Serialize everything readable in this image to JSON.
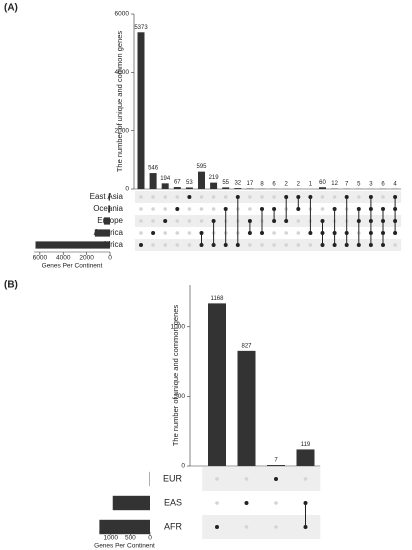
{
  "chart_data": [
    {
      "type": "upset",
      "title": "(A)",
      "ylabel": "The number of unique and common genes",
      "xlabel": "Genes Per Continent",
      "sets": [
        "East Asia",
        "Oceania",
        "Europe",
        "America",
        "Africa"
      ],
      "set_sizes": [
        110,
        150,
        520,
        1300,
        6370
      ],
      "set_xlim": [
        0,
        6500
      ],
      "set_xticks": [
        6000,
        4000,
        2000,
        0
      ],
      "values": [
        5373,
        546,
        194,
        67,
        53,
        595,
        219,
        55,
        32,
        17,
        8,
        6,
        2,
        2,
        1,
        60,
        12,
        7,
        5,
        3,
        6,
        4
      ],
      "intersections": [
        [
          4
        ],
        [
          3
        ],
        [
          2
        ],
        [
          1
        ],
        [
          0
        ],
        [
          3,
          4
        ],
        [
          2,
          4
        ],
        [
          1,
          4
        ],
        [
          0,
          4
        ],
        [
          2,
          3
        ],
        [
          1,
          3
        ],
        [
          1,
          2
        ],
        [
          0,
          2
        ],
        [
          0,
          1
        ],
        [
          0,
          3
        ],
        [
          2,
          3,
          4
        ],
        [
          1,
          3,
          4
        ],
        [
          0,
          3,
          4
        ],
        [
          1,
          2,
          4
        ],
        [
          0,
          1,
          2,
          3,
          4
        ],
        [
          1,
          2,
          3,
          4
        ],
        [
          0,
          1,
          2,
          3
        ]
      ],
      "ylim": [
        0,
        6000
      ],
      "yticks": [
        0,
        2000,
        4000,
        6000
      ],
      "color": "#333333"
    },
    {
      "type": "upset",
      "title": "(B)",
      "ylabel": "The number of unique and common genes",
      "xlabel": "Genes Per Continent",
      "sets": [
        "EUR",
        "EAS",
        "AFR"
      ],
      "set_sizes": [
        10,
        950,
        1290
      ],
      "set_xlim": [
        0,
        1300
      ],
      "set_xticks": [
        1000,
        500,
        0
      ],
      "values": [
        1168,
        827,
        7,
        119
      ],
      "intersections": [
        [
          2
        ],
        [
          1
        ],
        [
          0
        ],
        [
          1,
          2
        ]
      ],
      "ylim": [
        0,
        1300
      ],
      "yticks": [
        0,
        500,
        1000
      ],
      "color": "#333333"
    }
  ]
}
